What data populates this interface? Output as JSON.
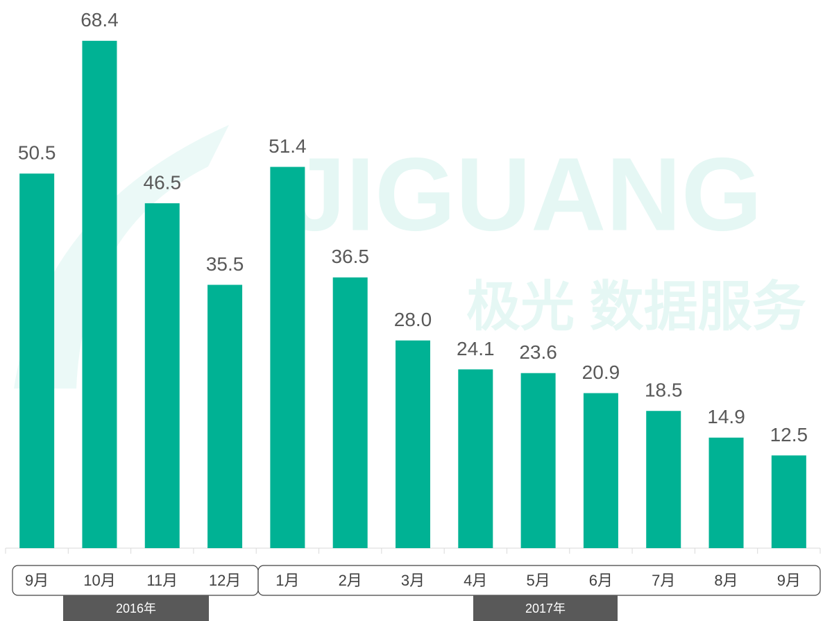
{
  "watermark": {
    "text": "JIGUANG",
    "subtext": "极光 数据服务"
  },
  "chart_data": {
    "type": "bar",
    "color": "#00b294",
    "ylim": [
      0,
      70
    ],
    "groups": [
      {
        "label": "2016年",
        "categories": [
          "9月",
          "10月",
          "11月",
          "12月"
        ],
        "values": [
          50.5,
          68.4,
          46.5,
          35.5
        ]
      },
      {
        "label": "2017年",
        "categories": [
          "1月",
          "2月",
          "3月",
          "4月",
          "5月",
          "6月",
          "7月",
          "8月",
          "9月"
        ],
        "values": [
          51.4,
          36.5,
          28.0,
          24.1,
          23.6,
          20.9,
          18.5,
          14.9,
          12.5
        ],
        "value_labels": [
          "51.4",
          "36.5",
          "28.0",
          "24.1",
          "23.6",
          "20.9",
          "18.5",
          "14.9",
          "12.5"
        ]
      }
    ]
  }
}
